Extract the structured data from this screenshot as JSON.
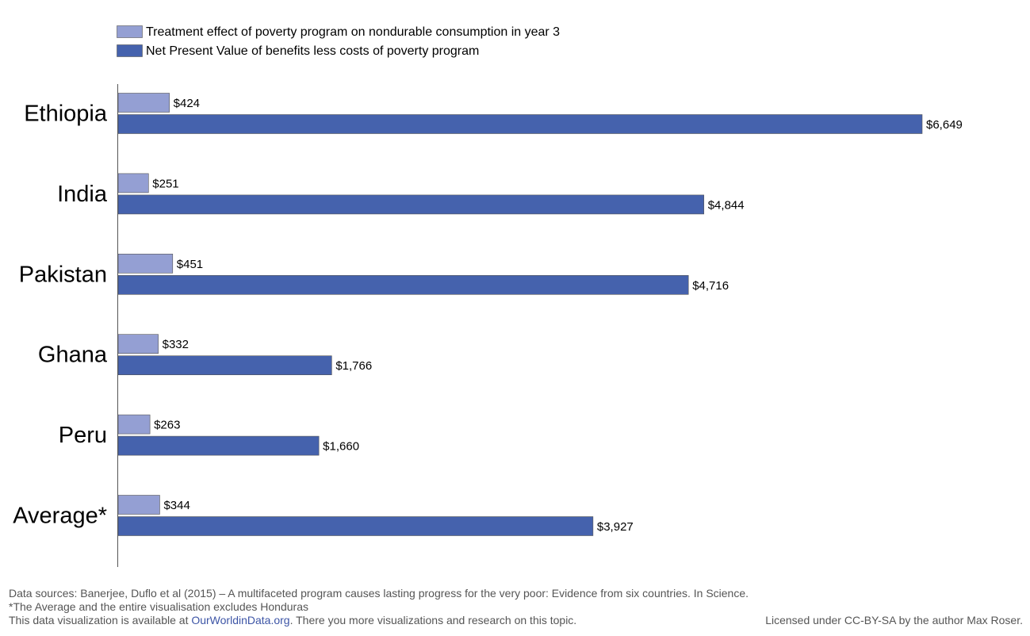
{
  "chart_data": {
    "type": "bar",
    "orientation": "horizontal",
    "categories": [
      "Ethiopia",
      "India",
      "Pakistan",
      "Ghana",
      "Peru",
      "Average*"
    ],
    "series": [
      {
        "name": "Treatment effect of poverty program on nondurable consumption in year 3",
        "values": [
          424,
          251,
          451,
          332,
          263,
          344
        ],
        "labels": [
          "$424",
          "$251",
          "$451",
          "$332",
          "$263",
          "$344"
        ],
        "color": "#949fd3"
      },
      {
        "name": "Net Present Value of benefits less costs of poverty program",
        "values": [
          6649,
          4844,
          4716,
          1766,
          1660,
          3927
        ],
        "labels": [
          "$6,649",
          "$4,844",
          "$4,716",
          "$1,766",
          "$1,660",
          "$3,927"
        ],
        "color": "#4562ad"
      }
    ],
    "xlim": [
      0,
      6649
    ],
    "grid": false,
    "legend_position": "top-left"
  },
  "footer": {
    "source": "Data sources: Banerjee, Duflo et al (2015) – A multifaceted program causes lasting progress for the very poor: Evidence from six countries. In Science.",
    "note": "*The Average and the entire visualisation excludes Honduras",
    "availability_prefix": "This data visualization is available at ",
    "availability_link": "OurWorldinData.org",
    "availability_suffix": ". There you more visualizations and research on this topic.",
    "license_prefix": "Licensed under ",
    "license_link": "CC-BY-SA",
    "license_suffix": " by the author Max Roser."
  }
}
